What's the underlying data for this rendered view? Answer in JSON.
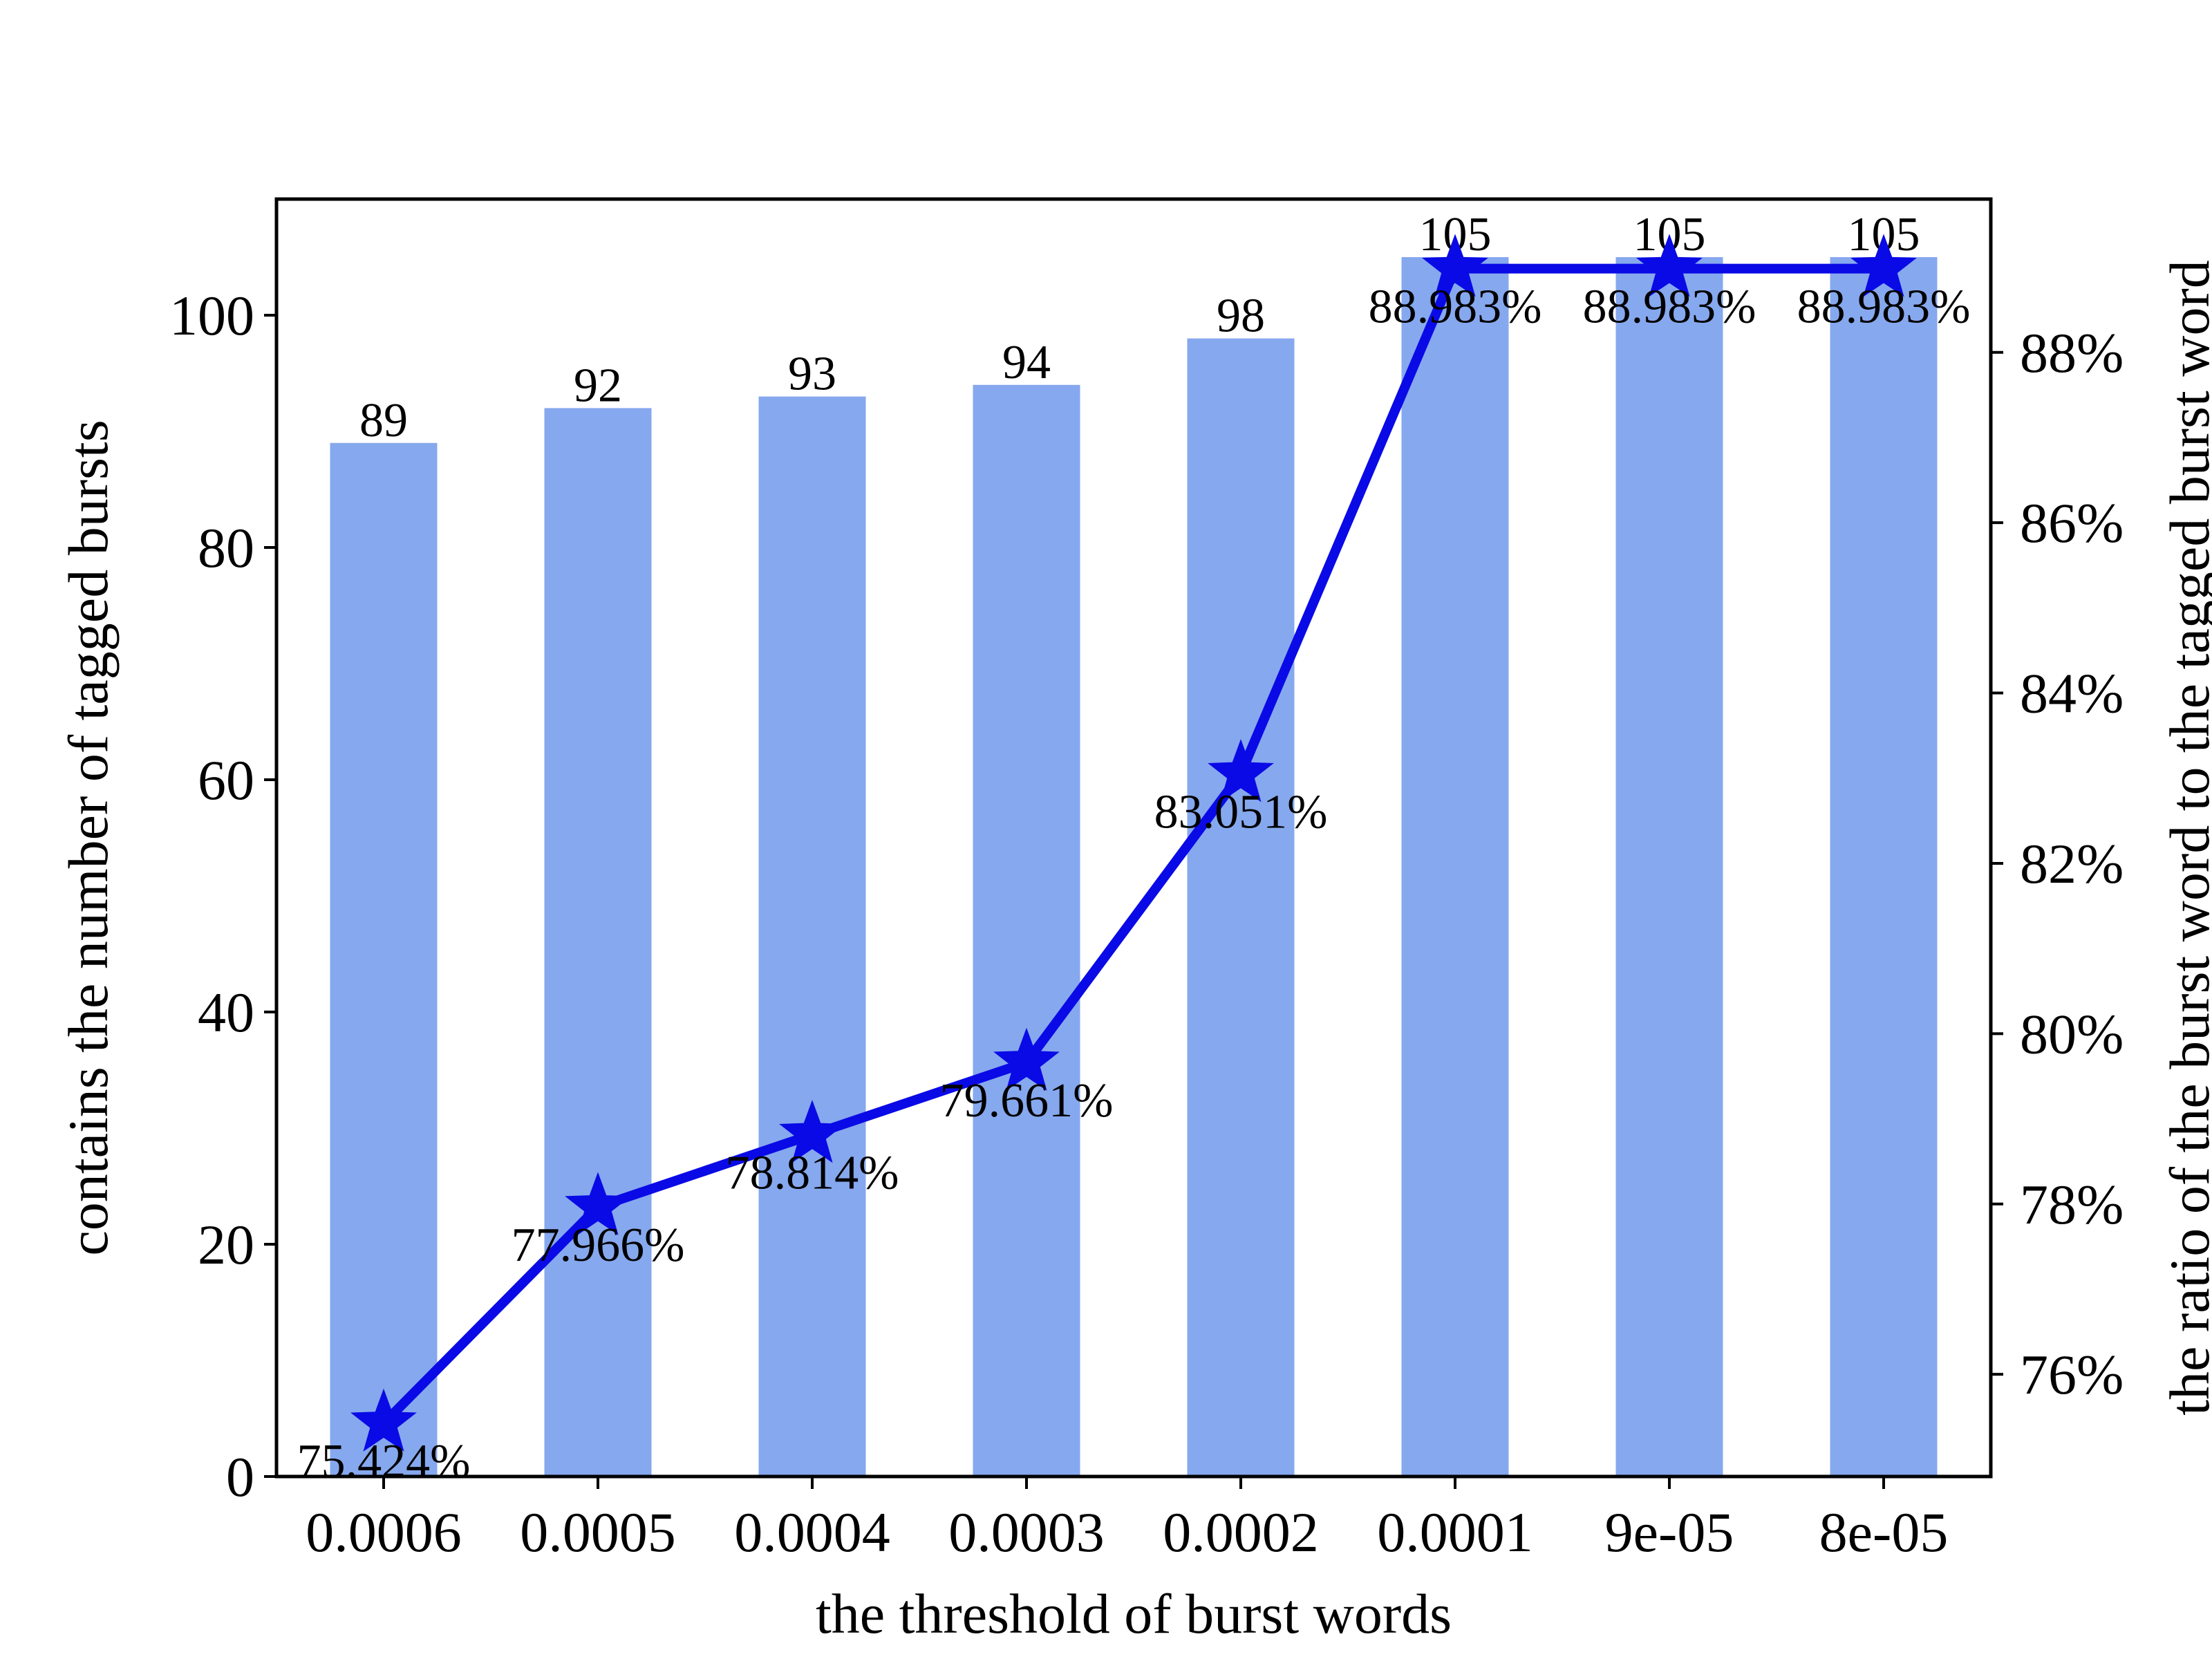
{
  "chart_data": {
    "type": "bar",
    "categories": [
      "0.0006",
      "0.0005",
      "0.0004",
      "0.0003",
      "0.0002",
      "0.0001",
      "9e-05",
      "8e-05"
    ],
    "xlabel": "the threshold of burst words",
    "ylabel_left": "contains the number of tagged bursts",
    "ylabel_right": "the ratio of the burst word to the tagged burst word",
    "ylim_left": [
      0,
      110
    ],
    "yticks_left": [
      "0",
      "20",
      "40",
      "60",
      "80",
      "100"
    ],
    "ylim_right": [
      74.8,
      89.8
    ],
    "yticks_right": [
      "76%",
      "78%",
      "80%",
      "82%",
      "84%",
      "86%",
      "88%"
    ],
    "grid": false,
    "series": [
      {
        "type": "bar",
        "axis": "left",
        "values": [
          89,
          92,
          93,
          94,
          98,
          105,
          105,
          105
        ],
        "labels": [
          "89",
          "92",
          "93",
          "94",
          "98",
          "105",
          "105",
          "105"
        ],
        "color": "#86a8ee"
      },
      {
        "type": "line",
        "axis": "right",
        "marker": "star",
        "values": [
          75.424,
          77.966,
          78.814,
          79.661,
          83.051,
          88.983,
          88.983,
          88.983
        ],
        "labels": [
          "75.424%",
          "77.966%",
          "78.814%",
          "79.661%",
          "83.051%",
          "88.983%",
          "88.983%",
          "88.983%"
        ],
        "color": "#0a0ae6"
      }
    ]
  }
}
